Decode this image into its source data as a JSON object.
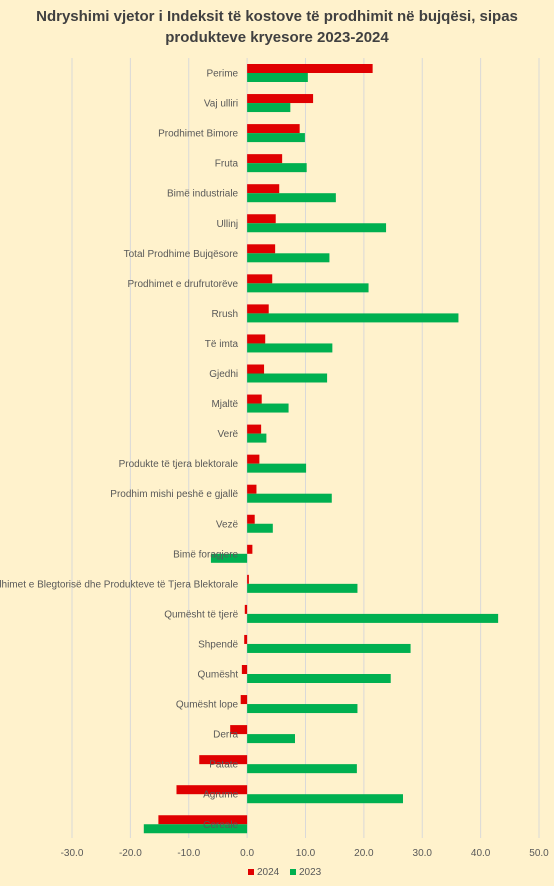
{
  "chart_data": {
    "type": "bar",
    "orientation": "horizontal",
    "title_line1": "Ndryshimi vjetor i Indeksit të kostove të prodhimit në bujqësi, sipas",
    "title_line2": "produkteve kryesore 2023-2024",
    "categories": [
      "Perime",
      "Vaj ulliri",
      "Prodhimet Bimore",
      "Fruta",
      "Bimë industriale",
      "Ullinj",
      "Total Prodhime Bujqësore",
      "Prodhimet e drufrutorëve",
      "Rrush",
      "Të imta",
      "Gjedhi",
      "Mjaltë",
      "Verë",
      "Produkte të tjera blektorale",
      "Prodhim mishi peshë e gjallë",
      "Vezë",
      "Bimë foragjere",
      "Prodhimet e Blegtorisë dhe Produkteve të Tjera Blektorale",
      "Qumësht të tjerë",
      "Shpendë",
      "Qumësht",
      "Qumësht lope",
      "Derra",
      "Patate",
      "Agrume",
      "Cereale"
    ],
    "series": [
      {
        "name": "2024",
        "color": "#e00000",
        "values": [
          21.5,
          11.3,
          9.0,
          6.0,
          5.5,
          4.9,
          4.8,
          4.3,
          3.7,
          3.1,
          2.9,
          2.5,
          2.4,
          2.1,
          1.6,
          1.3,
          0.9,
          0.3,
          -0.4,
          -0.5,
          -0.9,
          -1.1,
          -2.9,
          -8.2,
          -12.1,
          -15.2
        ]
      },
      {
        "name": "2023",
        "color": "#00b050",
        "values": [
          10.4,
          7.4,
          9.9,
          10.2,
          15.2,
          23.8,
          14.1,
          20.8,
          36.2,
          14.6,
          13.7,
          7.1,
          3.3,
          10.1,
          14.5,
          4.4,
          -6.2,
          18.9,
          43.0,
          28.0,
          24.6,
          18.9,
          8.2,
          18.8,
          26.7,
          -17.7
        ]
      }
    ],
    "xlim": [
      -30,
      50
    ],
    "xticks": [
      "-30.0",
      "-20.0",
      "-10.0",
      "0.0",
      "10.0",
      "20.0",
      "30.0",
      "40.0",
      "50.0"
    ],
    "grid": true,
    "legend_position": "bottom",
    "background_color": "#fff2cc"
  }
}
